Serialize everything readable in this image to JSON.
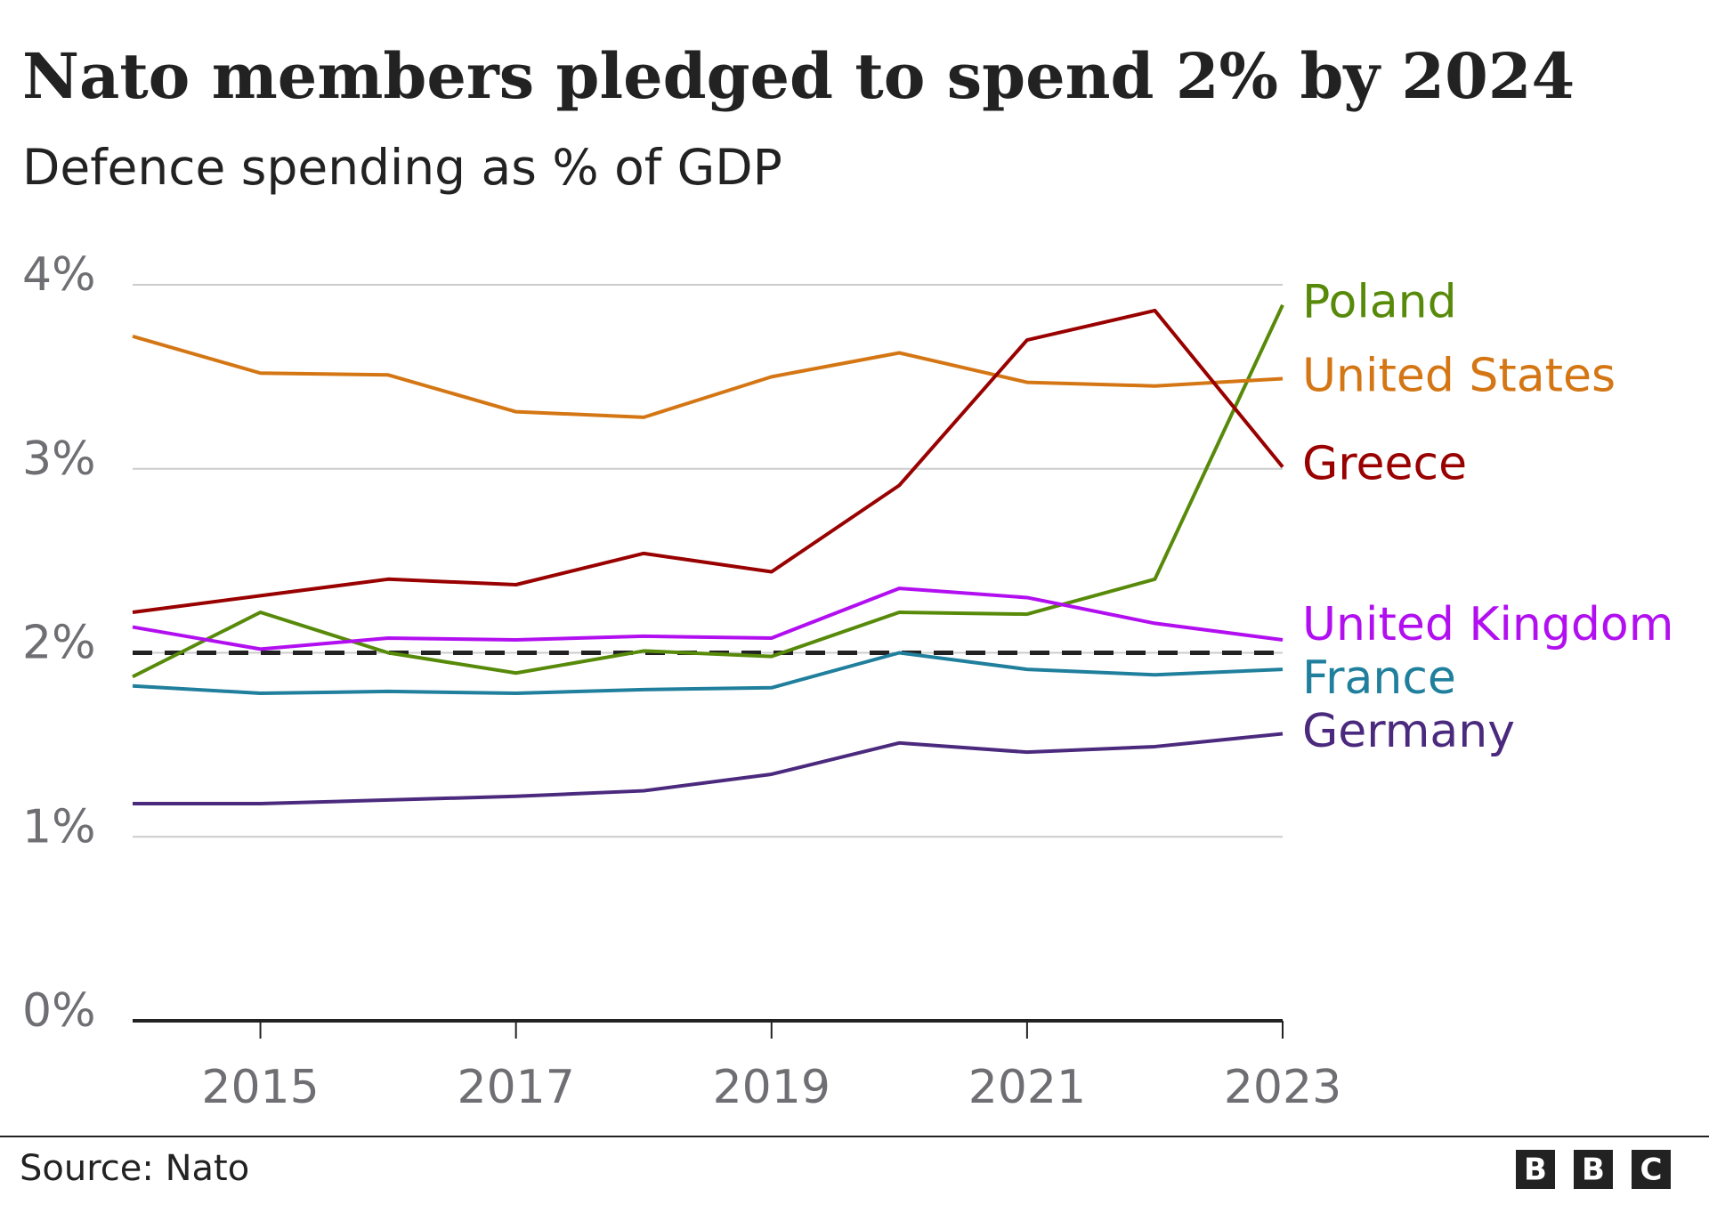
{
  "chart_data": {
    "type": "line",
    "title": "Nato members pledged to spend 2% by 2024",
    "subtitle": "Defence spending as % of GDP",
    "x": [
      2014,
      2015,
      2016,
      2017,
      2018,
      2019,
      2020,
      2021,
      2022,
      2023
    ],
    "xlim": [
      2014,
      2023
    ],
    "xticks": [
      2015,
      2017,
      2019,
      2021,
      2023
    ],
    "ylim": [
      0,
      4
    ],
    "yticks": [
      {
        "value": 0,
        "label": "0%"
      },
      {
        "value": 1,
        "label": "1%"
      },
      {
        "value": 2,
        "label": "2%"
      },
      {
        "value": 3,
        "label": "3%"
      },
      {
        "value": 4,
        "label": "4%"
      }
    ],
    "grid": true,
    "reference_line": 2,
    "series": [
      {
        "name": "Poland",
        "color": "#588a0a",
        "values": [
          1.87,
          2.22,
          2.0,
          1.89,
          2.01,
          1.98,
          2.22,
          2.21,
          2.4,
          3.89
        ]
      },
      {
        "name": "United States",
        "color": "#d47614",
        "values": [
          3.72,
          3.52,
          3.51,
          3.31,
          3.28,
          3.5,
          3.63,
          3.47,
          3.45,
          3.49
        ]
      },
      {
        "name": "Greece",
        "color": "#990000",
        "values": [
          2.22,
          2.31,
          2.4,
          2.37,
          2.54,
          2.44,
          2.91,
          3.7,
          3.86,
          3.01
        ]
      },
      {
        "name": "United Kingdom",
        "color": "#b20ff0",
        "values": [
          2.14,
          2.02,
          2.08,
          2.07,
          2.09,
          2.08,
          2.35,
          2.3,
          2.16,
          2.07
        ]
      },
      {
        "name": "France",
        "color": "#1f7f9c",
        "values": [
          1.82,
          1.78,
          1.79,
          1.78,
          1.8,
          1.81,
          2.0,
          1.91,
          1.88,
          1.91
        ]
      },
      {
        "name": "Germany",
        "color": "#4b2a7e",
        "values": [
          1.18,
          1.18,
          1.2,
          1.22,
          1.25,
          1.34,
          1.51,
          1.46,
          1.49,
          1.56
        ]
      }
    ]
  },
  "source": "Source: Nato",
  "logo": [
    "B",
    "B",
    "C"
  ]
}
